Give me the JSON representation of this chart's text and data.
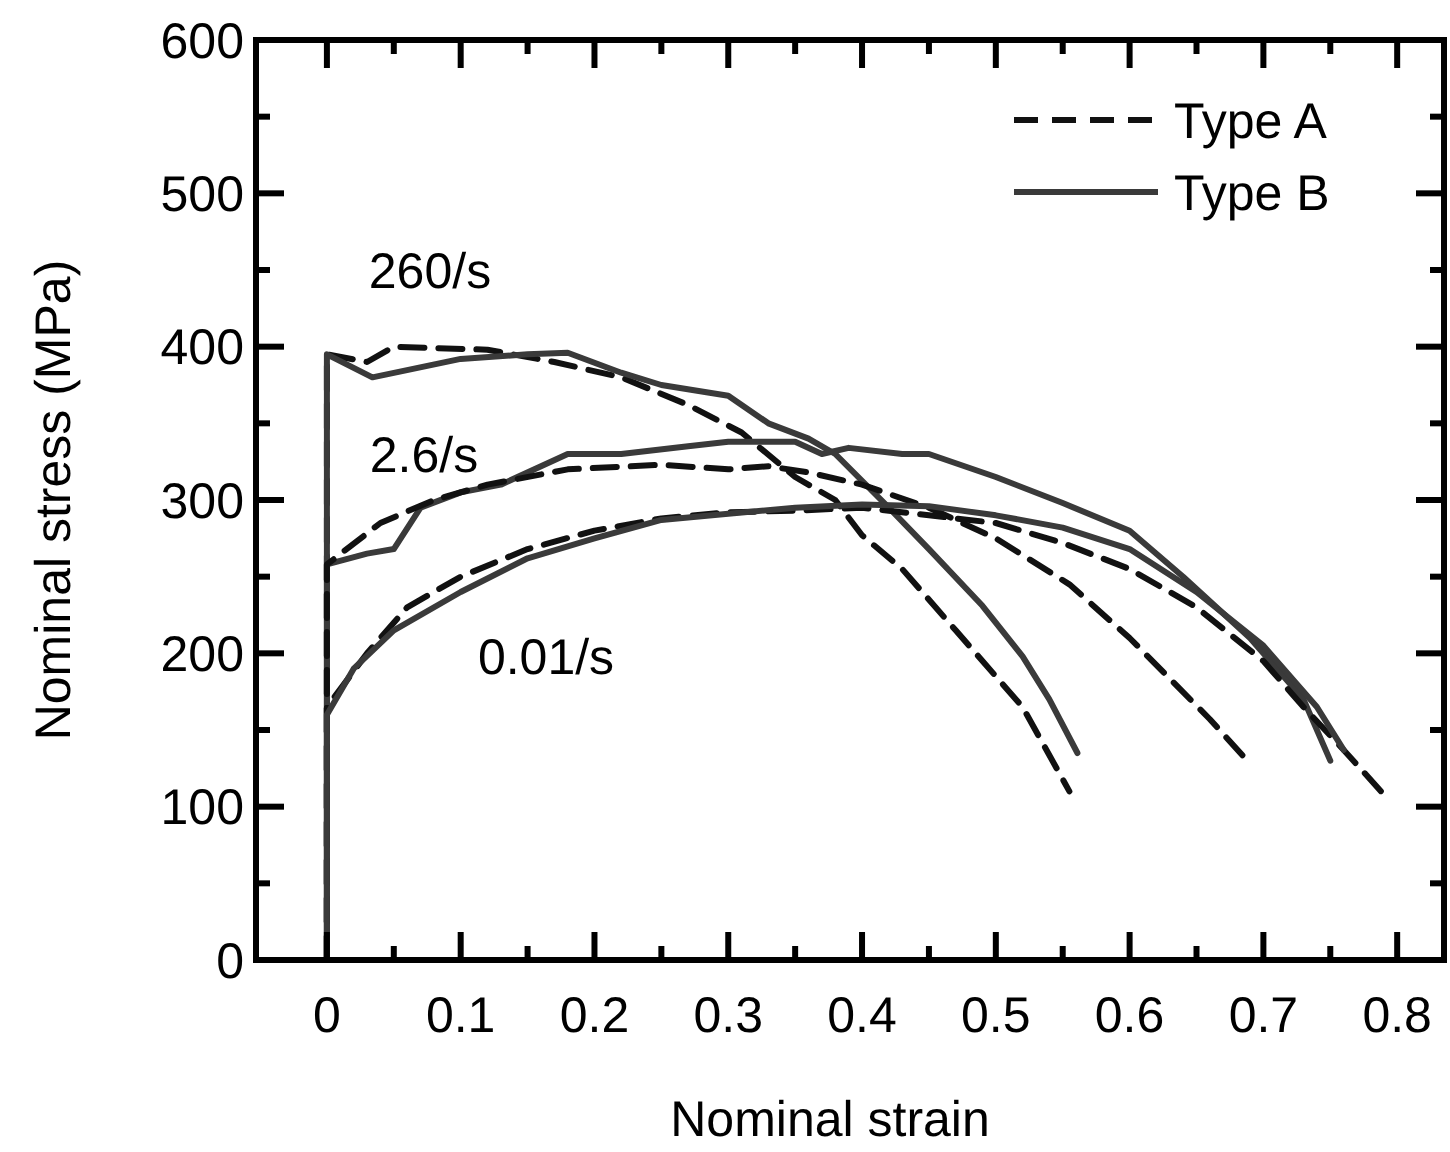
{
  "chart_data": {
    "type": "line",
    "xlabel": "Nominal strain",
    "ylabel": "Nominal stress (MPa)",
    "xlim": [
      -0.053,
      0.835
    ],
    "ylim": [
      0,
      600
    ],
    "xticks": [
      0,
      {
        "value": 0.05,
        "label": null
      },
      0.1,
      {
        "value": 0.15,
        "label": null
      },
      0.2,
      {
        "value": 0.25,
        "label": null
      },
      0.3,
      {
        "value": 0.35,
        "label": null
      },
      0.4,
      {
        "value": 0.45,
        "label": null
      },
      0.5,
      {
        "value": 0.55,
        "label": null
      },
      0.6,
      {
        "value": 0.65,
        "label": null
      },
      0.7,
      {
        "value": 0.75,
        "label": null
      },
      0.8
    ],
    "yticks": [
      0,
      {
        "value": 50,
        "label": null
      },
      100,
      {
        "value": 150,
        "label": null
      },
      200,
      {
        "value": 250,
        "label": null
      },
      300,
      {
        "value": 350,
        "label": null
      },
      400,
      {
        "value": 450,
        "label": null
      },
      500,
      {
        "value": 550,
        "label": null
      },
      600
    ],
    "legend": "top right",
    "grid": false,
    "marker": "none",
    "series": [
      {
        "name": "Type A",
        "color": "#111111",
        "line_style": "dashed",
        "x": [
          0,
          0,
          0.03,
          0.05,
          0.12,
          0.17,
          0.22,
          0.27,
          0.31,
          0.35,
          0.38,
          0.4,
          0.43,
          0.47,
          0.52,
          0.555
        ],
        "values": [
          0,
          395,
          390,
          400,
          398,
          390,
          380,
          362,
          344,
          315,
          300,
          277,
          255,
          215,
          165,
          110
        ]
      },
      {
        "name": "Type B",
        "color": "#3a3a3a",
        "line_style": "solid",
        "x": [
          0,
          0,
          0.034,
          0.1,
          0.15,
          0.18,
          0.22,
          0.25,
          0.3,
          0.33,
          0.36,
          0.38,
          0.42,
          0.45,
          0.49,
          0.52,
          0.54,
          0.561
        ],
        "values": [
          0,
          395,
          380,
          392,
          395,
          396,
          383,
          375,
          368,
          350,
          340,
          330,
          295,
          268,
          231,
          198,
          170,
          135
        ]
      },
      {
        "color": "#3a3a3a",
        "line_style": "solid",
        "x": [
          0,
          0,
          0.03,
          0.05,
          0.07,
          0.1,
          0.13,
          0.18,
          0.22,
          0.27,
          0.3,
          0.35,
          0.37,
          0.39,
          0.43,
          0.45,
          0.5,
          0.55,
          0.6,
          0.64,
          0.69,
          0.73,
          0.75
        ],
        "values": [
          0,
          258,
          265,
          268,
          295,
          305,
          310,
          330,
          330,
          335,
          338,
          338,
          330,
          334,
          330,
          330,
          315,
          298,
          280,
          250,
          210,
          170,
          130
        ]
      },
      {
        "color": "#111111",
        "line_style": "dashed",
        "x": [
          0,
          0,
          0.04,
          0.08,
          0.12,
          0.18,
          0.25,
          0.3,
          0.33,
          0.36,
          0.4,
          0.45,
          0.5,
          0.555,
          0.6,
          0.66,
          0.69
        ],
        "values": [
          0,
          258,
          285,
          300,
          310,
          320,
          323,
          320,
          322,
          318,
          310,
          295,
          275,
          245,
          210,
          157,
          128
        ]
      },
      {
        "color": "#111111",
        "line_style": "dashed",
        "x": [
          0,
          0,
          0.03,
          0.06,
          0.1,
          0.15,
          0.2,
          0.25,
          0.3,
          0.35,
          0.4,
          0.45,
          0.5,
          0.55,
          0.6,
          0.65,
          0.7,
          0.73,
          0.76,
          0.79
        ],
        "values": [
          0,
          165,
          200,
          230,
          250,
          268,
          280,
          288,
          292,
          293,
          295,
          290,
          285,
          272,
          255,
          230,
          195,
          165,
          137,
          108
        ]
      },
      {
        "color": "#3a3a3a",
        "line_style": "solid",
        "x": [
          0,
          0,
          0.02,
          0.05,
          0.1,
          0.15,
          0.2,
          0.25,
          0.3,
          0.35,
          0.4,
          0.45,
          0.5,
          0.55,
          0.6,
          0.65,
          0.7,
          0.74,
          0.76
        ],
        "values": [
          0,
          160,
          190,
          215,
          240,
          262,
          275,
          287,
          291,
          295,
          297,
          296,
          290,
          282,
          268,
          240,
          205,
          165,
          137
        ]
      }
    ],
    "annotations": [
      "260/s",
      "2.6/s",
      "0.01/s"
    ]
  }
}
